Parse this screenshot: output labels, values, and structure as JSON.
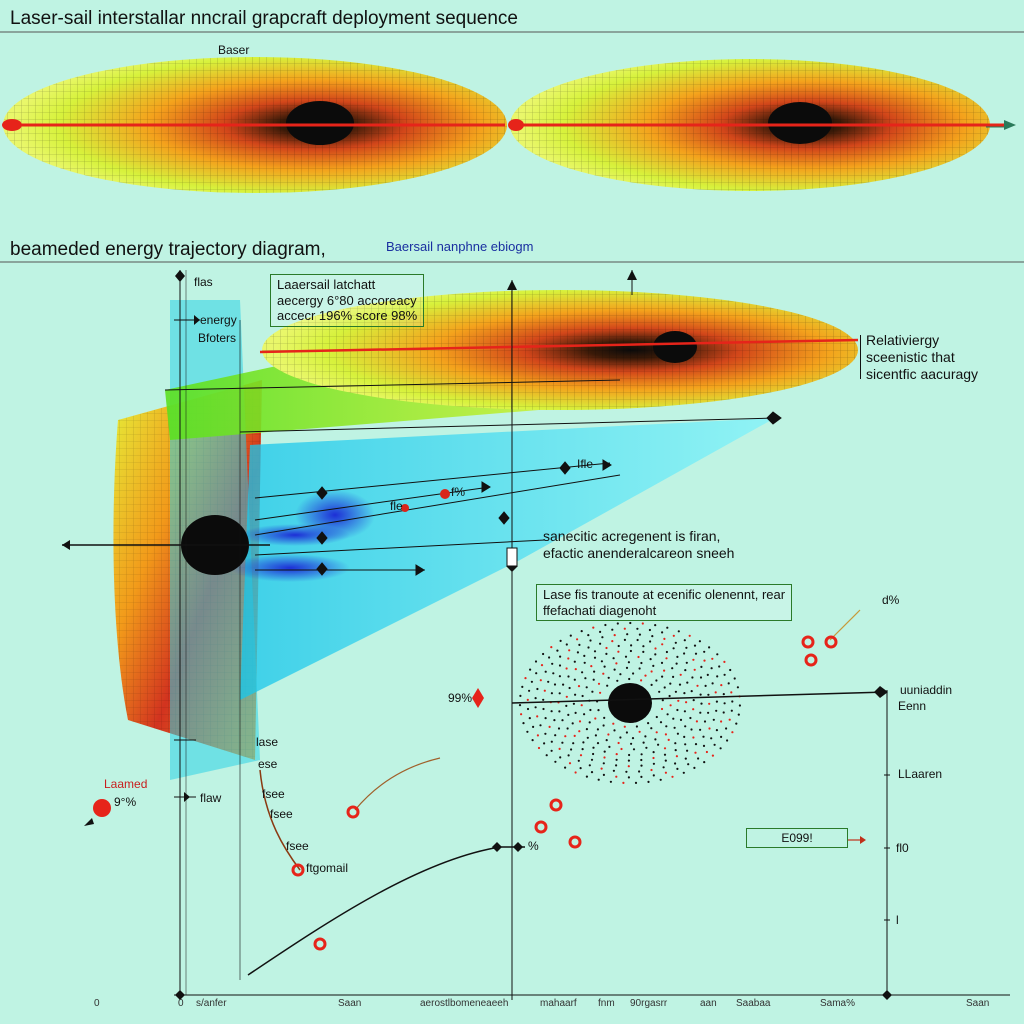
{
  "header": {
    "title": "Laser-sail interstallar nncrail grapcraft deployment sequence",
    "top_label": "Baser"
  },
  "diagram": {
    "section_title": "beameded energy trajectory diagram,",
    "section_subtitle": "Baersail nanphne ebiogm",
    "left_labels": [
      "flas",
      "energy",
      "Bfoters"
    ],
    "callout_top": [
      "Laaersail latchatt",
      "aecergy 6°80 accoreacy",
      "accecr 196% score 98%"
    ],
    "right_note": [
      "Relativiergy",
      "sceenistic that",
      "sicentfic aacuragy"
    ],
    "callout_mid": [
      "sanecitic acregenent is firan,",
      "efactic anenderalcareon sneeh"
    ],
    "callout_low": [
      "Lase fis tranoute at ecenific olenennt, rear",
      "ffefachati diagenoht"
    ],
    "low_right_pct": "d%",
    "marker_labels": [
      "Ifle",
      "f%",
      "fle"
    ],
    "pct_99": "99%",
    "bottom_left_labels": [
      "lase",
      "ese",
      "flaw",
      "fsee",
      "fsee",
      "fsee",
      "ftgomail"
    ],
    "learned": {
      "label": "Laamed",
      "pct": "9°%"
    },
    "right_axis_labels": [
      "uuniaddin",
      "Eenn",
      "LLaaren",
      "fl0",
      "l"
    ],
    "boxed_value": "E099!",
    "mid_pct": "%",
    "x_axis_labels": [
      "0",
      "0",
      "s/anfer",
      "Saan",
      "aerostlbomeneaeeh",
      "mahaarf",
      "fnm",
      "90rgasrr",
      "aan",
      "Saabaa",
      "Sama%",
      "Saan"
    ]
  },
  "colors": {
    "background": "#bff3e3",
    "beam": "#e6241a",
    "sail_edge": "#d7f23c",
    "sail_mid": "#f4a21c",
    "core": "#0b0b0b",
    "cyan_beam": "#3fe6f6",
    "callout_border": "#2a7a2a"
  }
}
